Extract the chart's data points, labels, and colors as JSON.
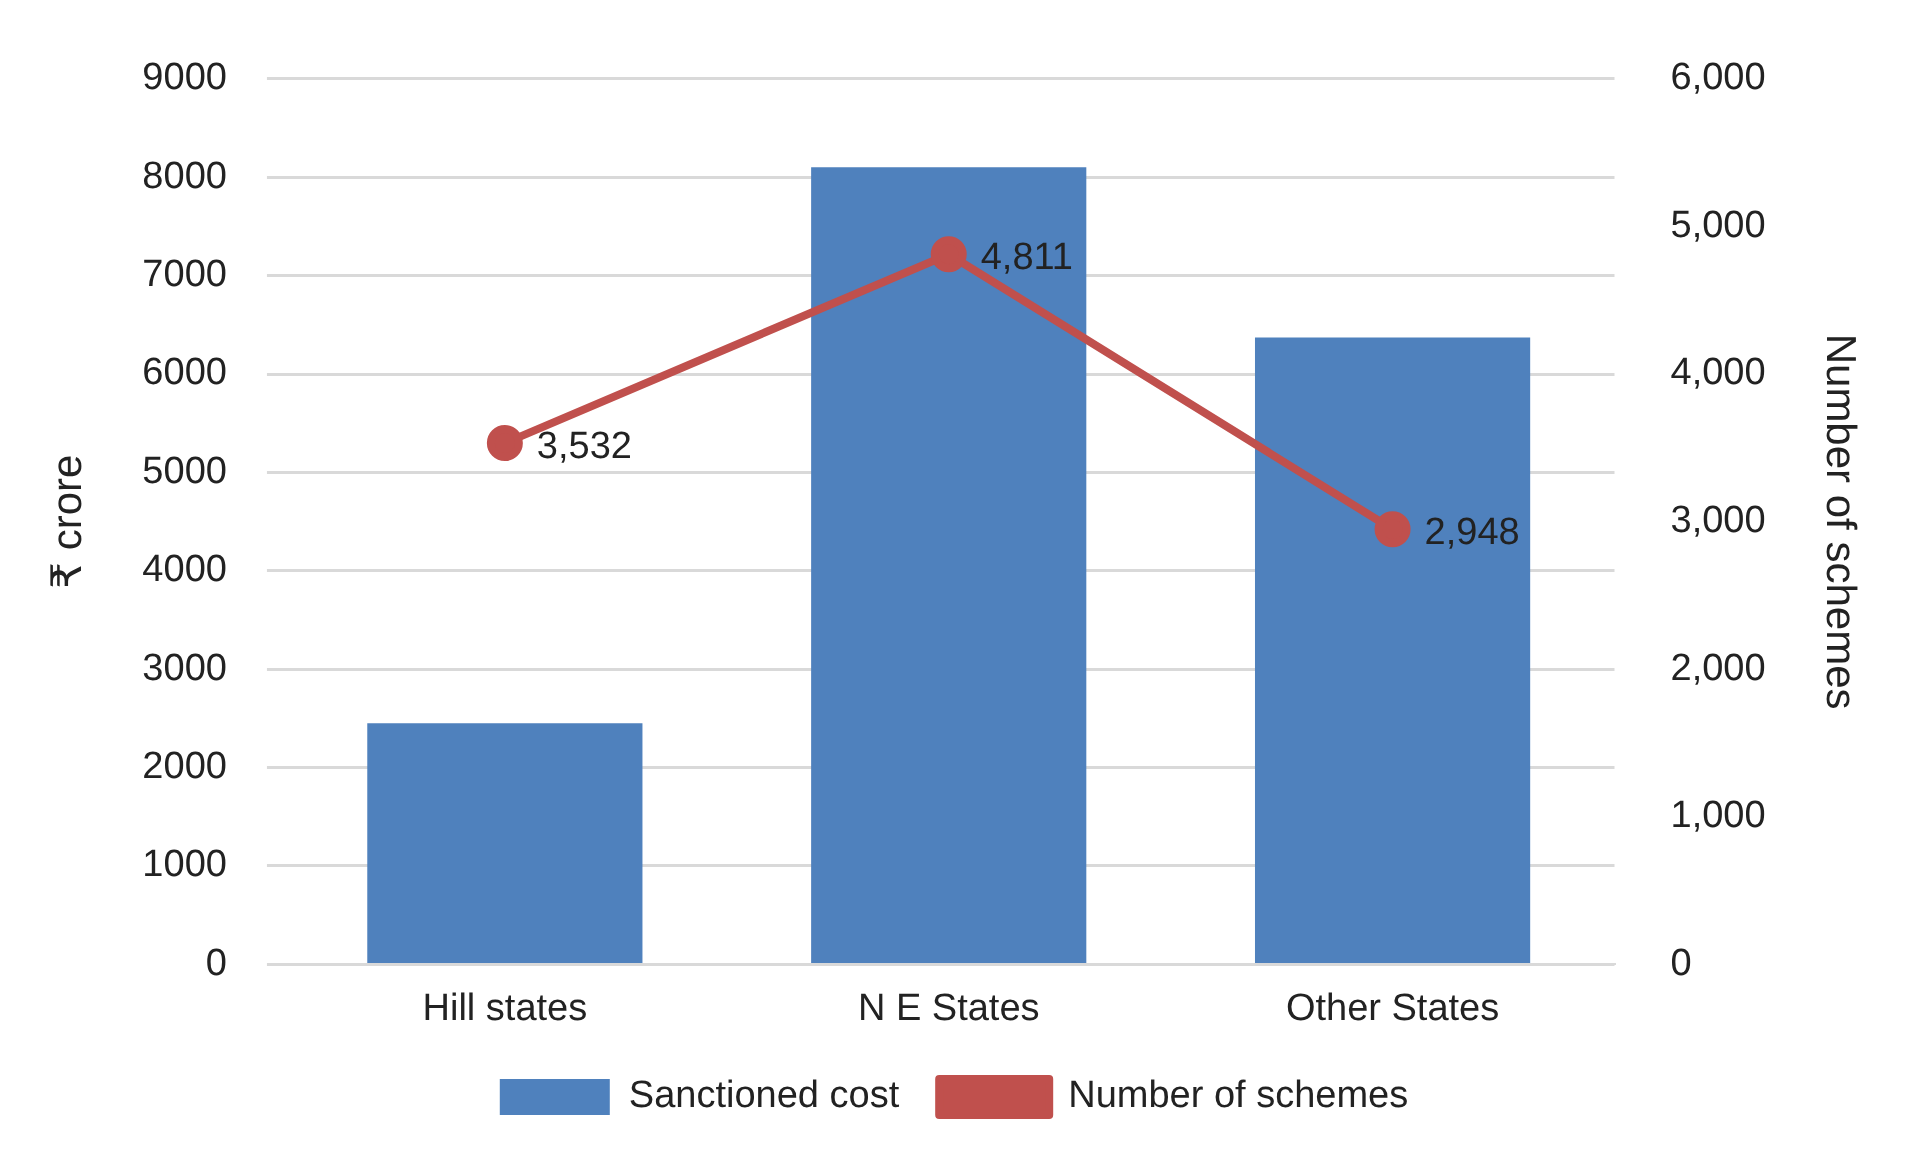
{
  "chart_data": {
    "type": "bar",
    "categories": [
      "Hill states",
      "N E States",
      "Other States"
    ],
    "ylabel": "₹ crore",
    "y2label": "Number of schemes",
    "ylim": [
      0,
      9000
    ],
    "yticks": [
      0,
      1000,
      2000,
      3000,
      4000,
      5000,
      6000,
      7000,
      8000,
      9000
    ],
    "y2lim": [
      0,
      6000
    ],
    "y2ticks": [
      {
        "value": 0,
        "label": "0"
      },
      {
        "value": 1000,
        "label": "1,000"
      },
      {
        "value": 2000,
        "label": "2,000"
      },
      {
        "value": 3000,
        "label": "3,000"
      },
      {
        "value": 4000,
        "label": "4,000"
      },
      {
        "value": 5000,
        "label": "5,000"
      },
      {
        "value": 6000,
        "label": "6,000"
      }
    ],
    "grid": "y",
    "legend": "bottom",
    "series": [
      {
        "name": "Sanctioned cost",
        "type": "bar",
        "color": "#4f81bd",
        "values": [
          2450,
          8100,
          6370
        ]
      },
      {
        "name": "Number of schemes",
        "type": "line",
        "axis": "y2",
        "color": "#c0504d",
        "marker": "circle",
        "values": [
          3532,
          4811,
          2948
        ],
        "value_labels": [
          "3,532",
          "4,811",
          "2,948"
        ]
      }
    ]
  }
}
